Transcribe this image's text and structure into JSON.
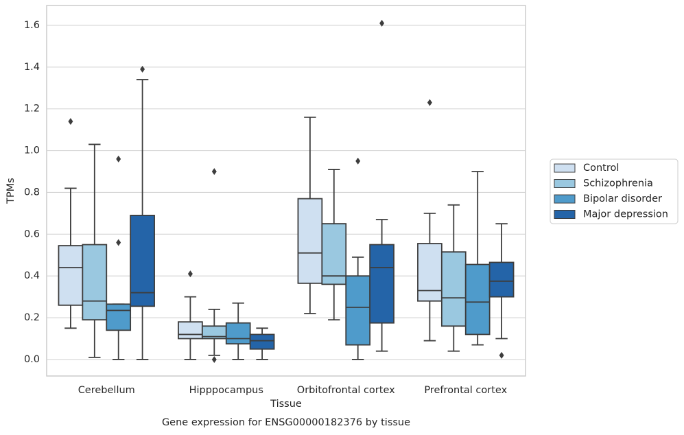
{
  "chart_data": {
    "type": "boxplot",
    "title": "Gene expression for ENSG00000182376 by tissue",
    "xlabel": "Tissue",
    "ylabel": "TPMs",
    "categories": [
      "Cerebellum",
      "Hipppocampus",
      "Orbitofrontal cortex",
      "Prefrontal cortex"
    ],
    "ylim": [
      -0.079,
      1.695
    ],
    "yticks": [
      {
        "value": 0,
        "label": "0.0"
      },
      0.2,
      0.4,
      0.6,
      0.8,
      {
        "value": 1,
        "label": "1.0"
      },
      1.2,
      1.4,
      1.6
    ],
    "grid": true,
    "legend": "right",
    "series": [
      {
        "name": "Control",
        "color": "#cfe0f1",
        "values": [
          {
            "whislo": 0.15,
            "q1": 0.26,
            "med": 0.44,
            "q3": 0.545,
            "whishi": 0.82,
            "fliers": [
              1.14
            ]
          },
          {
            "whislo": 0,
            "q1": 0.1,
            "med": 0.12,
            "q3": 0.18,
            "whishi": 0.3,
            "fliers": [
              0.41
            ]
          },
          {
            "whislo": 0.22,
            "q1": 0.365,
            "med": 0.51,
            "q3": 0.77,
            "whishi": 1.16,
            "fliers": []
          },
          {
            "whislo": 0.09,
            "q1": 0.28,
            "med": 0.33,
            "q3": 0.555,
            "whishi": 0.7,
            "fliers": [
              1.23
            ]
          }
        ]
      },
      {
        "name": "Schizophrenia",
        "color": "#9ac8e0",
        "values": [
          {
            "whislo": 0.01,
            "q1": 0.19,
            "med": 0.28,
            "q3": 0.55,
            "whishi": 1.03,
            "fliers": []
          },
          {
            "whislo": 0.02,
            "q1": 0.1,
            "med": 0.11,
            "q3": 0.16,
            "whishi": 0.24,
            "fliers": [
              0.9,
              0
            ]
          },
          {
            "whislo": 0.19,
            "q1": 0.36,
            "med": 0.4,
            "q3": 0.65,
            "whishi": 0.91,
            "fliers": []
          },
          {
            "whislo": 0.04,
            "q1": 0.16,
            "med": 0.295,
            "q3": 0.515,
            "whishi": 0.74,
            "fliers": []
          }
        ]
      },
      {
        "name": "Bipolar disorder",
        "color": "#4f9bcb",
        "values": [
          {
            "whislo": 0,
            "q1": 0.14,
            "med": 0.235,
            "q3": 0.265,
            "whishi": 0.265,
            "fliers": [
              0.96,
              0.56
            ]
          },
          {
            "whislo": 0,
            "q1": 0.075,
            "med": 0.1,
            "q3": 0.175,
            "whishi": 0.27,
            "fliers": []
          },
          {
            "whislo": 0,
            "q1": 0.07,
            "med": 0.25,
            "q3": 0.4,
            "whishi": 0.49,
            "fliers": [
              0.95
            ]
          },
          {
            "whislo": 0.07,
            "q1": 0.12,
            "med": 0.275,
            "q3": 0.455,
            "whishi": 0.9,
            "fliers": []
          }
        ]
      },
      {
        "name": "Major depression",
        "color": "#2464a8",
        "values": [
          {
            "whislo": 0,
            "q1": 0.255,
            "med": 0.32,
            "q3": 0.69,
            "whishi": 1.34,
            "fliers": [
              1.39
            ]
          },
          {
            "whislo": 0,
            "q1": 0.05,
            "med": 0.09,
            "q3": 0.12,
            "whishi": 0.15,
            "fliers": []
          },
          {
            "whislo": 0.04,
            "q1": 0.175,
            "med": 0.44,
            "q3": 0.55,
            "whishi": 0.67,
            "fliers": [
              1.61
            ]
          },
          {
            "whislo": 0.1,
            "q1": 0.3,
            "med": 0.375,
            "q3": 0.465,
            "whishi": 0.65,
            "fliers": [
              0.02
            ]
          }
        ]
      }
    ]
  }
}
